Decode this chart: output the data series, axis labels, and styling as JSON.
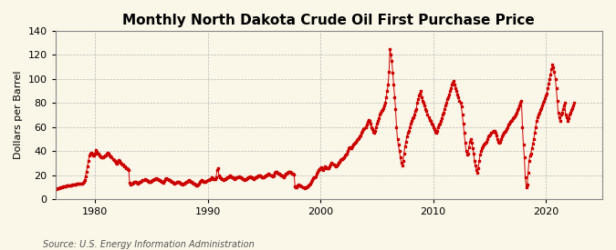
{
  "title": "Monthly North Dakota Crude Oil First Purchase Price",
  "ylabel": "Dollars per Barrel",
  "source": "Source: U.S. Energy Information Administration",
  "bg_color": "#faf6e8",
  "line_color": "#cc0000",
  "marker": "s",
  "markersize": 2.0,
  "linewidth": 0.7,
  "xlim": [
    1976.5,
    2025.0
  ],
  "ylim": [
    0,
    140
  ],
  "yticks": [
    0,
    20,
    40,
    60,
    80,
    100,
    120,
    140
  ],
  "xticks": [
    1980,
    1990,
    2000,
    2010,
    2020
  ],
  "grid_color": "#aaaaaa",
  "title_fontsize": 11,
  "label_fontsize": 8,
  "tick_fontsize": 8,
  "source_fontsize": 7,
  "prices": [
    8.5,
    8.9,
    9.2,
    9.3,
    9.5,
    9.8,
    10.1,
    10.3,
    10.5,
    10.7,
    10.9,
    11.0,
    11.2,
    11.4,
    11.5,
    11.6,
    11.7,
    11.8,
    11.9,
    12.1,
    12.2,
    12.3,
    12.5,
    12.7,
    12.8,
    12.9,
    13.0,
    13.2,
    13.5,
    14.0,
    16.0,
    19.0,
    23.0,
    27.0,
    31.5,
    36.0,
    38.0,
    38.5,
    37.5,
    36.0,
    36.5,
    38.0,
    40.5,
    39.5,
    38.0,
    37.5,
    36.0,
    35.5,
    35.0,
    34.5,
    35.0,
    35.5,
    36.0,
    36.5,
    38.0,
    38.5,
    37.5,
    36.0,
    35.5,
    34.5,
    33.5,
    32.5,
    31.5,
    30.5,
    29.5,
    31.0,
    32.5,
    31.5,
    30.5,
    29.5,
    29.0,
    28.5,
    27.5,
    27.0,
    26.0,
    25.5,
    25.0,
    24.5,
    13.5,
    12.0,
    12.5,
    13.0,
    13.5,
    14.0,
    14.5,
    14.0,
    13.5,
    13.0,
    13.5,
    14.0,
    14.5,
    15.0,
    15.5,
    16.0,
    16.5,
    16.0,
    15.5,
    15.0,
    14.5,
    14.0,
    14.5,
    15.0,
    15.5,
    16.0,
    16.5,
    17.0,
    17.5,
    17.0,
    16.5,
    16.0,
    15.5,
    15.0,
    14.5,
    14.0,
    13.5,
    15.0,
    17.0,
    17.5,
    17.0,
    16.5,
    16.0,
    15.5,
    15.0,
    14.5,
    14.0,
    13.5,
    13.0,
    13.5,
    14.0,
    14.5,
    14.0,
    13.5,
    13.0,
    12.5,
    12.0,
    12.5,
    13.0,
    13.5,
    14.0,
    14.5,
    15.0,
    15.5,
    15.0,
    14.5,
    14.0,
    13.5,
    13.0,
    12.5,
    12.0,
    11.5,
    11.0,
    12.0,
    13.0,
    14.0,
    15.0,
    15.5,
    15.0,
    14.5,
    14.0,
    14.5,
    15.0,
    15.5,
    16.0,
    16.5,
    17.0,
    18.0,
    17.5,
    17.0,
    16.5,
    17.0,
    18.0,
    24.0,
    26.0,
    20.0,
    18.0,
    17.5,
    17.0,
    16.5,
    16.0,
    16.5,
    17.0,
    17.5,
    18.0,
    18.5,
    19.0,
    19.5,
    19.0,
    18.5,
    18.0,
    17.5,
    17.0,
    17.5,
    18.0,
    18.5,
    19.0,
    18.5,
    18.0,
    17.5,
    17.0,
    16.5,
    16.0,
    16.5,
    17.0,
    17.5,
    18.0,
    18.5,
    19.0,
    18.5,
    18.0,
    17.5,
    17.0,
    17.5,
    18.0,
    18.5,
    19.0,
    19.5,
    20.0,
    19.5,
    19.0,
    18.5,
    18.0,
    18.5,
    19.0,
    19.5,
    20.0,
    20.5,
    21.0,
    20.5,
    20.0,
    19.5,
    19.0,
    20.0,
    22.0,
    23.0,
    22.5,
    22.0,
    21.5,
    21.0,
    20.5,
    20.0,
    19.5,
    19.0,
    18.5,
    19.5,
    21.0,
    21.5,
    22.0,
    22.5,
    23.0,
    22.5,
    22.0,
    21.5,
    21.0,
    20.5,
    10.5,
    9.5,
    10.0,
    11.0,
    12.0,
    11.5,
    11.0,
    10.5,
    10.0,
    9.5,
    9.0,
    9.5,
    10.0,
    10.5,
    11.0,
    12.0,
    13.0,
    14.0,
    16.0,
    17.5,
    18.0,
    18.5,
    19.0,
    21.0,
    23.0,
    24.0,
    25.0,
    26.0,
    26.5,
    25.0,
    24.0,
    25.5,
    27.0,
    26.5,
    26.0,
    25.5,
    26.0,
    27.0,
    28.5,
    30.0,
    29.5,
    29.0,
    28.0,
    27.5,
    28.0,
    29.0,
    30.0,
    31.0,
    32.5,
    33.0,
    33.5,
    34.0,
    35.0,
    36.0,
    37.0,
    38.0,
    40.0,
    42.0,
    43.0,
    42.5,
    42.0,
    43.5,
    45.0,
    46.0,
    47.0,
    48.0,
    49.0,
    50.0,
    51.0,
    52.0,
    53.0,
    55.0,
    57.0,
    58.0,
    59.0,
    60.0,
    62.0,
    64.0,
    66.0,
    65.0,
    63.0,
    60.0,
    58.0,
    56.0,
    55.0,
    57.0,
    60.0,
    63.0,
    65.0,
    67.0,
    70.0,
    72.0,
    73.0,
    74.0,
    76.0,
    78.0,
    80.0,
    85.0,
    90.0,
    95.0,
    106.0,
    125.0,
    120.0,
    115.0,
    105.0,
    95.0,
    85.0,
    75.0,
    60.0,
    50.0,
    45.0,
    40.0,
    35.0,
    30.0,
    28.0,
    32.0,
    38.0,
    44.0,
    48.0,
    52.0,
    55.0,
    57.0,
    60.0,
    63.0,
    65.0,
    67.0,
    68.0,
    70.0,
    73.0,
    75.0,
    80.0,
    83.0,
    86.0,
    88.0,
    90.0,
    85.0,
    82.0,
    80.0,
    78.0,
    75.0,
    73.0,
    70.0,
    68.0,
    66.0,
    65.0,
    63.0,
    62.0,
    60.0,
    58.0,
    56.0,
    55.0,
    57.0,
    60.0,
    62.0,
    63.0,
    65.0,
    67.0,
    70.0,
    72.0,
    75.0,
    78.0,
    80.0,
    83.0,
    85.0,
    87.0,
    90.0,
    92.0,
    95.0,
    97.0,
    98.0,
    95.0,
    92.0,
    90.0,
    87.0,
    85.0,
    82.0,
    80.0,
    77.0,
    70.0,
    63.0,
    55.0,
    47.0,
    40.0,
    37.0,
    38.0,
    43.0,
    48.0,
    50.0,
    47.0,
    42.0,
    38.0,
    32.0,
    28.0,
    24.0,
    22.0,
    26.0,
    32.0,
    37.0,
    40.0,
    42.0,
    44.0,
    45.0,
    46.0,
    47.0,
    48.0,
    50.0,
    52.0,
    53.0,
    54.0,
    55.0,
    56.0,
    57.0,
    57.0,
    55.0,
    53.0,
    50.0,
    48.0,
    47.0,
    48.0,
    50.0,
    52.0,
    54.0,
    55.0,
    56.0,
    57.0,
    58.0,
    60.0,
    62.0,
    63.0,
    64.0,
    65.0,
    66.0,
    67.0,
    68.0,
    69.0,
    70.0,
    72.0,
    74.0,
    76.0,
    78.0,
    80.0,
    82.0,
    60.0,
    45.0,
    35.0,
    18.0,
    10.0,
    12.0,
    22.0,
    32.0,
    36.0,
    38.0,
    42.0,
    46.0,
    50.0,
    55.0,
    60.0,
    65.0,
    68.0,
    70.0,
    72.0,
    74.0,
    76.0,
    78.0,
    80.0,
    82.0,
    84.0,
    86.0,
    88.0,
    92.0,
    96.0,
    100.0,
    104.0,
    108.0,
    112.0,
    110.0,
    106.0,
    100.0,
    92.0,
    82.0,
    72.0,
    68.0,
    65.0,
    70.0,
    72.0,
    75.0,
    78.0,
    80.0,
    70.0,
    68.0,
    65.0,
    67.0,
    70.0,
    72.0,
    74.0,
    76.0,
    78.0,
    80.0
  ]
}
